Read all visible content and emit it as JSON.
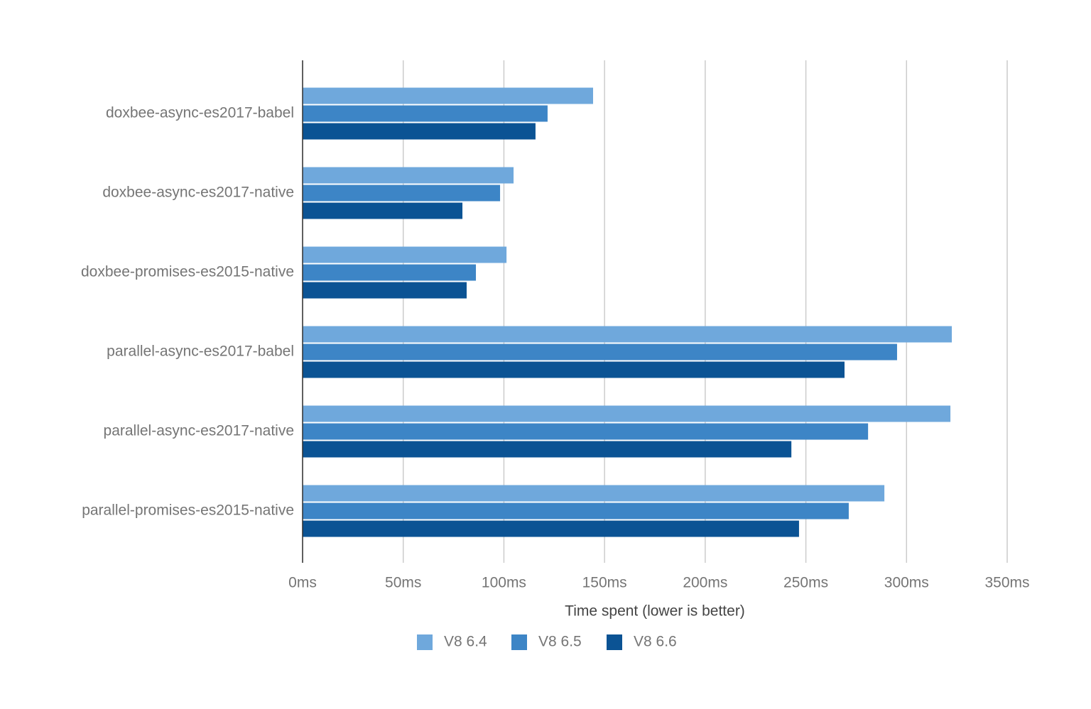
{
  "chart_data": {
    "type": "bar",
    "orientation": "horizontal",
    "x_label": "Time spent (lower is better)",
    "categories": [
      "doxbee-async-es2017-babel",
      "doxbee-async-es2017-native",
      "doxbee-promises-es2015-native",
      "parallel-async-es2017-babel",
      "parallel-async-es2017-native",
      "parallel-promises-es2015-native"
    ],
    "series": [
      {
        "name": "V8 6.4",
        "color": "#6fa8dc",
        "values": [
          144.3,
          104.8,
          101.3,
          322.5,
          321.8,
          289
        ]
      },
      {
        "name": "V8 6.5",
        "color": "#3d85c6",
        "values": [
          121.7,
          98.1,
          86.1,
          295.3,
          280.9,
          271.3
        ]
      },
      {
        "name": "V8 6.6",
        "color": "#0b5394",
        "values": [
          115.7,
          79.4,
          81.5,
          269.2,
          242.8,
          246.6
        ]
      }
    ],
    "xlim": [
      0,
      350
    ],
    "xticks": [
      {
        "value": 0,
        "label": "0ms"
      },
      {
        "value": 50,
        "label": "50ms"
      },
      {
        "value": 100,
        "label": "100ms"
      },
      {
        "value": 150,
        "label": "150ms"
      },
      {
        "value": 200,
        "label": "200ms"
      },
      {
        "value": 250,
        "label": "250ms"
      },
      {
        "value": 300,
        "label": "300ms"
      },
      {
        "value": 350,
        "label": "350ms"
      }
    ],
    "grid": true,
    "legend": "bottom"
  }
}
